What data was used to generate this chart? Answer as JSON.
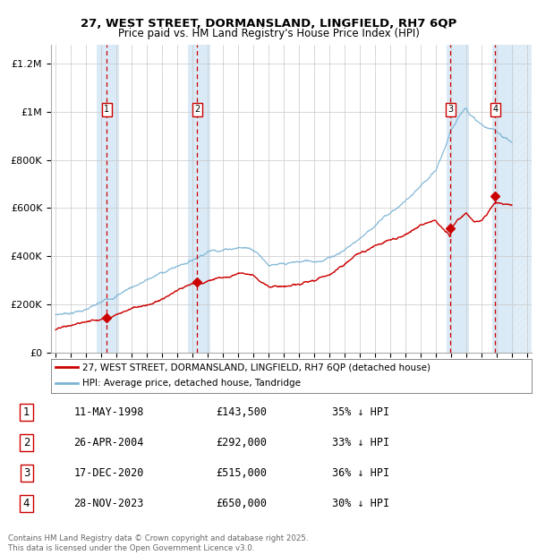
{
  "title_line1": "27, WEST STREET, DORMANSLAND, LINGFIELD, RH7 6QP",
  "title_line2": "Price paid vs. HM Land Registry's House Price Index (HPI)",
  "ylabel_ticks": [
    "£0",
    "£200K",
    "£400K",
    "£600K",
    "£800K",
    "£1M",
    "£1.2M"
  ],
  "ytick_values": [
    0,
    200000,
    400000,
    600000,
    800000,
    1000000,
    1200000
  ],
  "ylim": [
    0,
    1280000
  ],
  "xlim_start": 1994.7,
  "xlim_end": 2026.3,
  "xticks": [
    1995,
    1996,
    1997,
    1998,
    1999,
    2000,
    2001,
    2002,
    2003,
    2004,
    2005,
    2006,
    2007,
    2008,
    2009,
    2010,
    2011,
    2012,
    2013,
    2014,
    2015,
    2016,
    2017,
    2018,
    2019,
    2020,
    2021,
    2022,
    2023,
    2024,
    2025,
    2026
  ],
  "sale_dates": [
    1998.36,
    2004.32,
    2020.96,
    2023.91
  ],
  "sale_prices": [
    143500,
    292000,
    515000,
    650000
  ],
  "sale_labels": [
    "1",
    "2",
    "3",
    "4"
  ],
  "vline_color": "#cc0000",
  "highlight_bands": [
    [
      1997.7,
      1999.2
    ],
    [
      2003.7,
      2005.2
    ],
    [
      2020.7,
      2022.2
    ],
    [
      2023.7,
      2025.2
    ]
  ],
  "hatch_band": [
    2025.2,
    2026.3
  ],
  "band_color": "#daeaf6",
  "legend_entries": [
    "27, WEST STREET, DORMANSLAND, LINGFIELD, RH7 6QP (detached house)",
    "HPI: Average price, detached house, Tandridge"
  ],
  "table_data": [
    [
      "1",
      "11-MAY-1998",
      "£143,500",
      "35% ↓ HPI"
    ],
    [
      "2",
      "26-APR-2004",
      "£292,000",
      "33% ↓ HPI"
    ],
    [
      "3",
      "17-DEC-2020",
      "£515,000",
      "36% ↓ HPI"
    ],
    [
      "4",
      "28-NOV-2023",
      "£650,000",
      "30% ↓ HPI"
    ]
  ],
  "footer": "Contains HM Land Registry data © Crown copyright and database right 2025.\nThis data is licensed under the Open Government Licence v3.0.",
  "red_line_color": "#cc0000",
  "blue_line_color": "#7ab3d4",
  "background_color": "#ffffff"
}
